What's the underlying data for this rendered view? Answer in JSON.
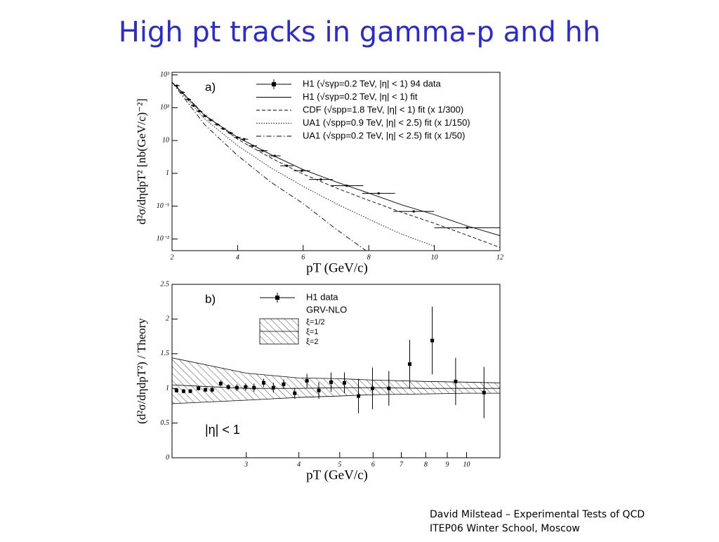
{
  "title": "High pt tracks in gamma-p and hh",
  "footer": [
    "David Milstead – Experimental Tests of QCD",
    "ITEP06 Winter School, Moscow"
  ],
  "chart_data": [
    {
      "type": "line",
      "panel": "a)",
      "xlabel": "pT (GeV/c)",
      "ylabel": "d²σ/dηdpT² [nb(GeV/c)⁻²]",
      "xlim": [
        2,
        12
      ],
      "xticks": [
        2,
        4,
        6,
        8,
        10,
        12
      ],
      "ylim": [
        0.0044,
        1200
      ],
      "yscale": "log",
      "yticks": [
        {
          "value": 0.01,
          "label": "10⁻²"
        },
        {
          "value": 0.1,
          "label": "10⁻¹"
        },
        1,
        10,
        {
          "value": 100,
          "label": "10²"
        },
        {
          "value": 1000,
          "label": "10³"
        }
      ],
      "series": [
        {
          "name": "H1 (√sγp=0.2 TeV, |η| < 1) 94 data",
          "style": "points",
          "color": "#000000",
          "x": [
            2.15,
            2.32,
            2.5,
            2.66,
            2.83,
            3.0,
            3.18,
            3.37,
            3.56,
            3.78,
            3.99,
            4.2,
            4.46,
            4.76,
            5.13,
            5.5,
            5.96,
            6.54,
            7.33,
            8.3,
            9.37,
            11.0
          ],
          "values": [
            470,
            290,
            180,
            115,
            78,
            56,
            42,
            31,
            23,
            17,
            12.4,
            11,
            6.9,
            4.9,
            3.4,
            1.7,
            1.2,
            0.65,
            0.42,
            0.245,
            0.069,
            0.022
          ],
          "xerr": [
            0.08,
            0.08,
            0.08,
            0.08,
            0.08,
            0.08,
            0.08,
            0.08,
            0.08,
            0.08,
            0.1,
            0.12,
            0.13,
            0.15,
            0.18,
            0.2,
            0.25,
            0.36,
            0.5,
            0.5,
            0.62,
            1.0
          ]
        },
        {
          "name": "H1 (√sγp=0.2 TeV, |η| < 1) fit",
          "style": "solid",
          "color": "#000000",
          "x": [
            2,
            3,
            4,
            5,
            6,
            7,
            8,
            9,
            10,
            11,
            12
          ],
          "values": [
            600,
            57,
            12.5,
            3.8,
            1.3,
            0.55,
            0.25,
            0.11,
            0.055,
            0.025,
            0.0126
          ]
        },
        {
          "name": "CDF (√spp=1.8 TeV, |η| < 1) fit (x 1/300)",
          "style": "dashed",
          "color": "#000000",
          "x": [
            2,
            3,
            4,
            5,
            6,
            7,
            8,
            9,
            10,
            11,
            12
          ],
          "values": [
            600,
            60,
            11,
            3,
            0.95,
            0.36,
            0.15,
            0.065,
            0.03,
            0.013,
            0.0055
          ]
        },
        {
          "name": "UA1 (√spp=0.9 TeV, |η| < 2.5) fit (x 1/150)",
          "style": "dotted",
          "color": "#000000",
          "x": [
            2,
            3,
            4,
            5,
            6,
            7,
            8,
            9,
            10
          ],
          "values": [
            600,
            45,
            7,
            1.5,
            0.4,
            0.12,
            0.04,
            0.014,
            0.006
          ]
        },
        {
          "name": "UA1 (√spp=0.2 TeV, |η| < 2.5) fit (x 1/50)",
          "style": "dashdot",
          "color": "#000000",
          "x": [
            2,
            3,
            4,
            5,
            6,
            7,
            7.9
          ],
          "values": [
            600,
            30,
            3.5,
            0.55,
            0.12,
            0.02,
            0.0045
          ]
        }
      ]
    },
    {
      "type": "scatter",
      "panel": "b)",
      "xlabel": "pT (GeV/c)",
      "ylabel": "(d²σ/dηdpT²) / Theory",
      "annotation": "|η| < 1",
      "xscale": "log",
      "xlim": [
        2,
        12
      ],
      "xticks": [
        3,
        4,
        5,
        6,
        7,
        8,
        9,
        10
      ],
      "ylim": [
        0,
        2.5
      ],
      "yticks": [
        0,
        0.5,
        1,
        1.5,
        2,
        2.5
      ],
      "series": [
        {
          "name": "H1 data",
          "style": "points",
          "color": "#000000",
          "x": [
            2.05,
            2.13,
            2.21,
            2.31,
            2.4,
            2.49,
            2.61,
            2.72,
            2.85,
            2.99,
            3.13,
            3.3,
            3.48,
            3.68,
            3.91,
            4.18,
            4.46,
            4.77,
            5.13,
            5.54,
            5.98,
            6.54,
            7.33,
            8.29,
            9.42,
            11.0
          ],
          "values": [
            0.97,
            0.96,
            0.96,
            1.0,
            0.98,
            0.98,
            1.07,
            1.02,
            1.01,
            1.02,
            1.01,
            1.08,
            1.01,
            1.06,
            0.93,
            1.11,
            0.97,
            1.09,
            1.08,
            0.89,
            1.0,
            1.0,
            1.35,
            1.69,
            1.1,
            0.94
          ],
          "yerr": [
            0.03,
            0.03,
            0.03,
            0.03,
            0.03,
            0.04,
            0.04,
            0.04,
            0.05,
            0.05,
            0.06,
            0.06,
            0.07,
            0.07,
            0.08,
            0.1,
            0.12,
            0.14,
            0.15,
            0.25,
            0.3,
            0.25,
            0.35,
            0.49,
            0.34,
            0.37
          ]
        },
        {
          "name": "GRV-NLO",
          "style": "band",
          "color": "#000000",
          "labels": [
            "ξ=1/2",
            "ξ=1",
            "ξ=2"
          ],
          "x": [
            2,
            3,
            4,
            5,
            6,
            8,
            10,
            12
          ],
          "upper": [
            1.44,
            1.22,
            1.15,
            1.14,
            1.12,
            1.1,
            1.09,
            1.08
          ],
          "values": [
            1.05,
            1.0,
            1.0,
            1.01,
            1.01,
            1.0,
            1.0,
            1.0
          ],
          "lower": [
            0.78,
            0.83,
            0.87,
            0.89,
            0.91,
            0.92,
            0.93,
            0.93
          ]
        }
      ]
    }
  ]
}
